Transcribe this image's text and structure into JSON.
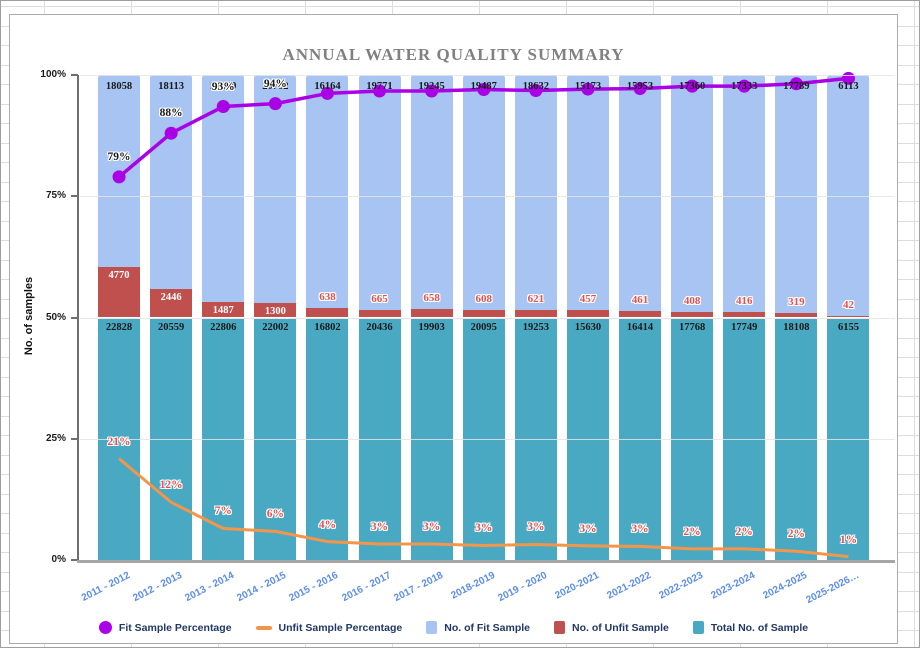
{
  "chart_data": {
    "type": "bar",
    "subtype": "100pct-stacked-bars-with-two-percentage-lines",
    "title": "ANNUAL WATER QUALITY SUMMARY",
    "xlabel": "",
    "ylabel": "No. of samples",
    "ylim": [
      0,
      100
    ],
    "y_ticks": [
      {
        "value": 0,
        "label": "0%"
      },
      {
        "value": 25,
        "label": "25%"
      },
      {
        "value": 50,
        "label": "50%"
      },
      {
        "value": 75,
        "label": "75%"
      },
      {
        "value": 100,
        "label": "100%"
      }
    ],
    "grid": true,
    "legend_position": "bottom",
    "categories": [
      "2011 - 2012",
      "2012 - 2013",
      "2013 - 2014",
      "2014 - 2015",
      "2015 - 2016",
      "2016 - 2017",
      "2017 - 2018",
      "2018-2019",
      "2019 - 2020",
      "2020-2021",
      "2021-2022",
      "2022-2023",
      "2023-2024",
      "2024-2025",
      "2025-2026…"
    ],
    "series": [
      {
        "name": "Total No. of Sample",
        "type": "bar",
        "color": "#4aa9c2",
        "values": [
          22828,
          20559,
          22806,
          22002,
          16802,
          20436,
          19903,
          20095,
          19253,
          15630,
          16414,
          17768,
          17749,
          18108,
          6155
        ]
      },
      {
        "name": "No. of Unfit Sample",
        "type": "bar",
        "color": "#c0504d",
        "values": [
          4770,
          2446,
          1487,
          1300,
          638,
          665,
          658,
          608,
          621,
          457,
          461,
          408,
          416,
          319,
          42
        ]
      },
      {
        "name": "No. of Fit Sample",
        "type": "bar",
        "color": "#a7c4f2",
        "values": [
          18058,
          18113,
          21319,
          20702,
          16164,
          19771,
          19245,
          19487,
          18632,
          15173,
          15953,
          17360,
          17333,
          17789,
          6113
        ]
      },
      {
        "name": "Fit Sample Percentage",
        "type": "line",
        "color": "#aa00e6",
        "marker": "circle",
        "values": [
          79,
          88,
          93.5,
          94.1,
          96.2,
          96.7,
          96.7,
          97.0,
          96.8,
          97.1,
          97.2,
          97.7,
          97.7,
          98.2,
          99.3
        ],
        "labels": [
          "79%",
          "88%",
          "93%",
          "94%",
          "",
          "",
          "",
          "",
          "",
          "",
          "",
          "",
          "",
          "",
          ""
        ]
      },
      {
        "name": "Unfit Sample Percentage",
        "type": "line",
        "color": "#f49649",
        "marker": "none",
        "values": [
          20.9,
          11.9,
          6.5,
          5.9,
          3.8,
          3.3,
          3.3,
          3.0,
          3.2,
          2.9,
          2.8,
          2.3,
          2.3,
          1.8,
          0.7
        ],
        "labels": [
          "21%",
          "12%",
          "7%",
          "6%",
          "4%",
          "3%",
          "3%",
          "3%",
          "3%",
          "3%",
          "3%",
          "2%",
          "2%",
          "2%",
          "1%"
        ]
      }
    ],
    "stacking_note": "Each bar totals 100%: Total segment always 50%, Unfit and Fit share the upper half proportionally.",
    "colors": {
      "fit_bar": "#a7c4f2",
      "unfit_bar": "#c0504d",
      "total_bar": "#4aa9c2",
      "fit_line": "#aa00e6",
      "unfit_line": "#f49649",
      "x_label": "#5b8deb",
      "legend_text": "#203864",
      "title_text": "#808080",
      "unfit_label_text": "#e05252"
    }
  }
}
